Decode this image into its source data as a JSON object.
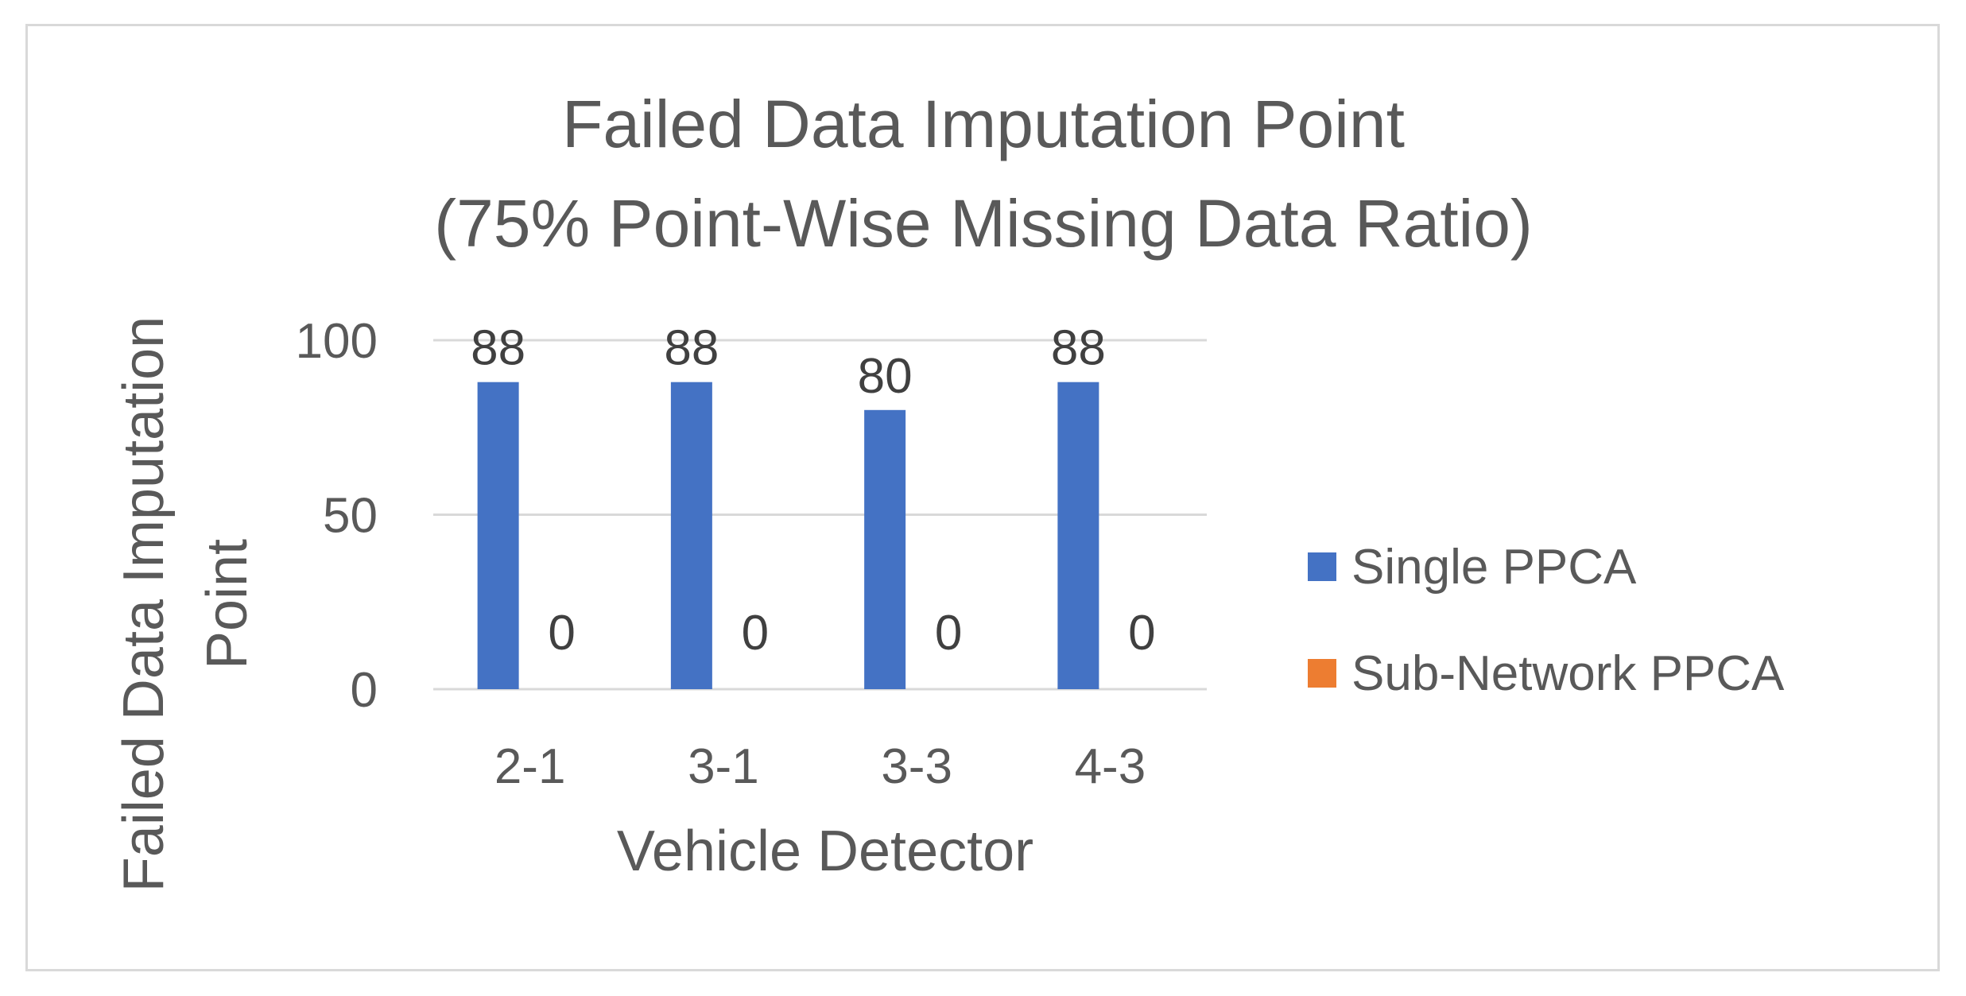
{
  "chart_data": {
    "type": "bar",
    "title_line1": "Failed Data Imputation Point",
    "title_line2": "(75% Point-Wise Missing Data Ratio)",
    "xlabel": "Vehicle Detector",
    "ylabel_line1": "Failed Data Imputation",
    "ylabel_line2": "Point",
    "categories": [
      "2-1",
      "3-1",
      "3-3",
      "4-3"
    ],
    "series": [
      {
        "name": "Single PPCA",
        "color": "#4472c4",
        "values": [
          88,
          88,
          80,
          88
        ]
      },
      {
        "name": "Sub-Network PPCA",
        "color": "#ed7d31",
        "values": [
          0,
          0,
          0,
          0
        ]
      }
    ],
    "yticks": [
      0,
      50,
      100
    ],
    "ylim": [
      0,
      100
    ],
    "grid": true,
    "legend": "right"
  }
}
